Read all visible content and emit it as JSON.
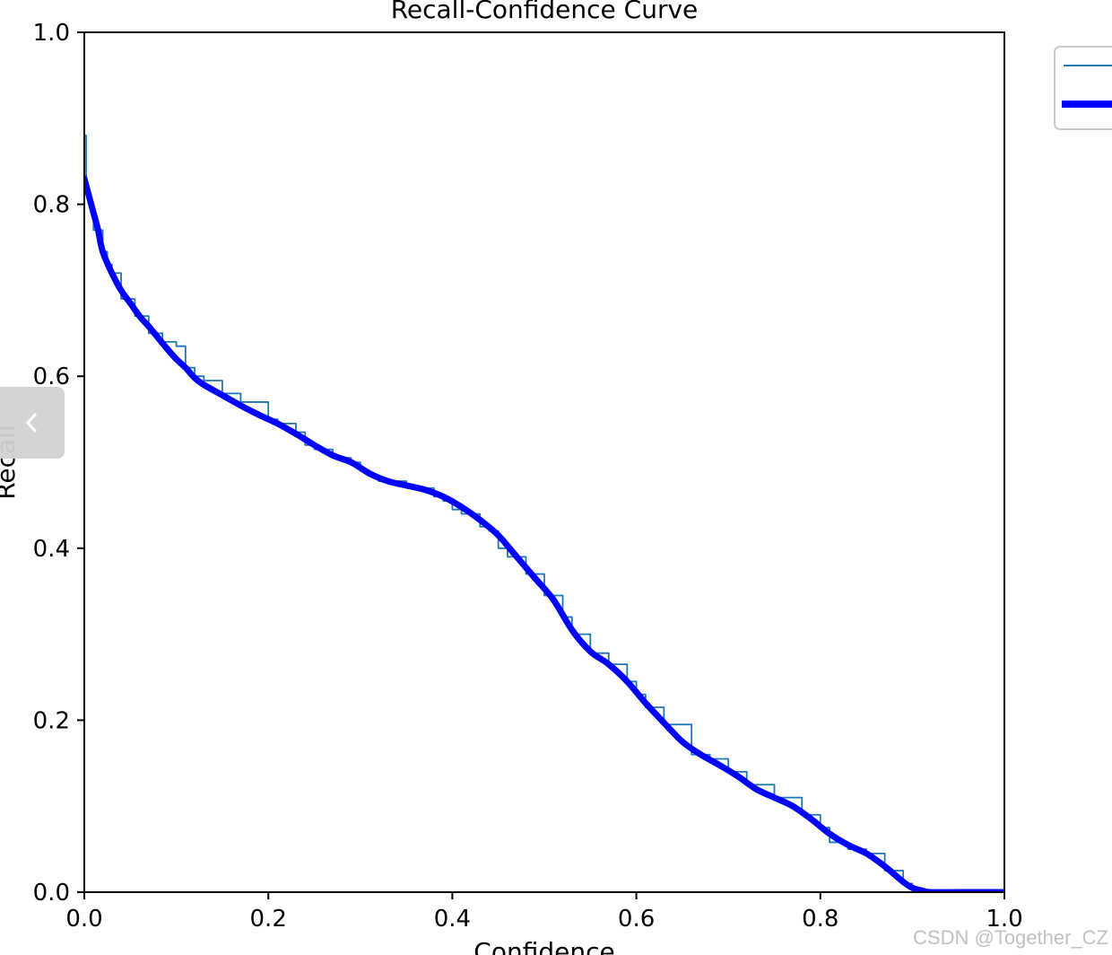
{
  "chart_data": {
    "type": "line",
    "title": "Recall-Confidence Curve",
    "xlabel": "Confidence",
    "ylabel": "Recall",
    "xlim": [
      0,
      1
    ],
    "ylim": [
      0,
      1
    ],
    "xticks": [
      "0.0",
      "0.2",
      "0.4",
      "0.6",
      "0.8",
      "1.0"
    ],
    "yticks": [
      "0.0",
      "0.2",
      "0.4",
      "0.6",
      "0.8",
      "1.0"
    ],
    "grid": false,
    "legend_position": "top-right",
    "series": [
      {
        "color": "#1f77b4",
        "style": "thin-step",
        "x": [
          0.0,
          0.002,
          0.005,
          0.01,
          0.014,
          0.02,
          0.025,
          0.03,
          0.04,
          0.045,
          0.055,
          0.07,
          0.085,
          0.1,
          0.11,
          0.12,
          0.13,
          0.15,
          0.17,
          0.2,
          0.21,
          0.23,
          0.24,
          0.25,
          0.27,
          0.29,
          0.3,
          0.31,
          0.32,
          0.35,
          0.38,
          0.39,
          0.4,
          0.41,
          0.43,
          0.44,
          0.45,
          0.46,
          0.48,
          0.5,
          0.52,
          0.53,
          0.55,
          0.57,
          0.59,
          0.6,
          0.61,
          0.63,
          0.66,
          0.68,
          0.7,
          0.72,
          0.75,
          0.78,
          0.8,
          0.81,
          0.83,
          0.85,
          0.87,
          0.89,
          0.9,
          0.91,
          0.92,
          1.0
        ],
        "y": [
          0.88,
          0.82,
          0.8,
          0.77,
          0.77,
          0.745,
          0.73,
          0.72,
          0.69,
          0.69,
          0.67,
          0.65,
          0.64,
          0.635,
          0.61,
          0.6,
          0.595,
          0.58,
          0.57,
          0.55,
          0.545,
          0.535,
          0.52,
          0.515,
          0.505,
          0.5,
          0.49,
          0.485,
          0.478,
          0.47,
          0.46,
          0.455,
          0.445,
          0.44,
          0.425,
          0.42,
          0.4,
          0.39,
          0.37,
          0.345,
          0.32,
          0.3,
          0.278,
          0.265,
          0.245,
          0.23,
          0.215,
          0.195,
          0.16,
          0.155,
          0.14,
          0.125,
          0.11,
          0.09,
          0.075,
          0.058,
          0.05,
          0.045,
          0.025,
          0.01,
          0.004,
          0.0,
          0.0,
          0.0
        ]
      },
      {
        "color": "#0000ff",
        "style": "thick-smooth",
        "x": [
          0.0,
          0.005,
          0.01,
          0.015,
          0.02,
          0.03,
          0.04,
          0.05,
          0.06,
          0.07,
          0.08,
          0.09,
          0.1,
          0.11,
          0.12,
          0.13,
          0.15,
          0.17,
          0.19,
          0.21,
          0.23,
          0.25,
          0.27,
          0.29,
          0.31,
          0.33,
          0.35,
          0.37,
          0.39,
          0.41,
          0.43,
          0.45,
          0.47,
          0.49,
          0.51,
          0.53,
          0.55,
          0.57,
          0.59,
          0.61,
          0.63,
          0.65,
          0.67,
          0.69,
          0.71,
          0.73,
          0.75,
          0.77,
          0.79,
          0.81,
          0.83,
          0.85,
          0.87,
          0.89,
          0.9,
          0.91,
          0.92,
          0.95,
          1.0
        ],
        "y": [
          0.83,
          0.81,
          0.79,
          0.77,
          0.745,
          0.72,
          0.7,
          0.685,
          0.67,
          0.658,
          0.645,
          0.632,
          0.62,
          0.61,
          0.598,
          0.59,
          0.578,
          0.566,
          0.555,
          0.545,
          0.533,
          0.52,
          0.508,
          0.5,
          0.487,
          0.478,
          0.473,
          0.468,
          0.46,
          0.448,
          0.433,
          0.415,
          0.39,
          0.365,
          0.34,
          0.305,
          0.28,
          0.265,
          0.245,
          0.22,
          0.197,
          0.175,
          0.16,
          0.148,
          0.135,
          0.12,
          0.11,
          0.1,
          0.085,
          0.068,
          0.055,
          0.045,
          0.03,
          0.012,
          0.005,
          0.002,
          0.0,
          0.0,
          0.0
        ]
      }
    ]
  },
  "watermark": "CSDN @Together_CZ",
  "nav": {
    "icon": "chevron-left-icon"
  }
}
